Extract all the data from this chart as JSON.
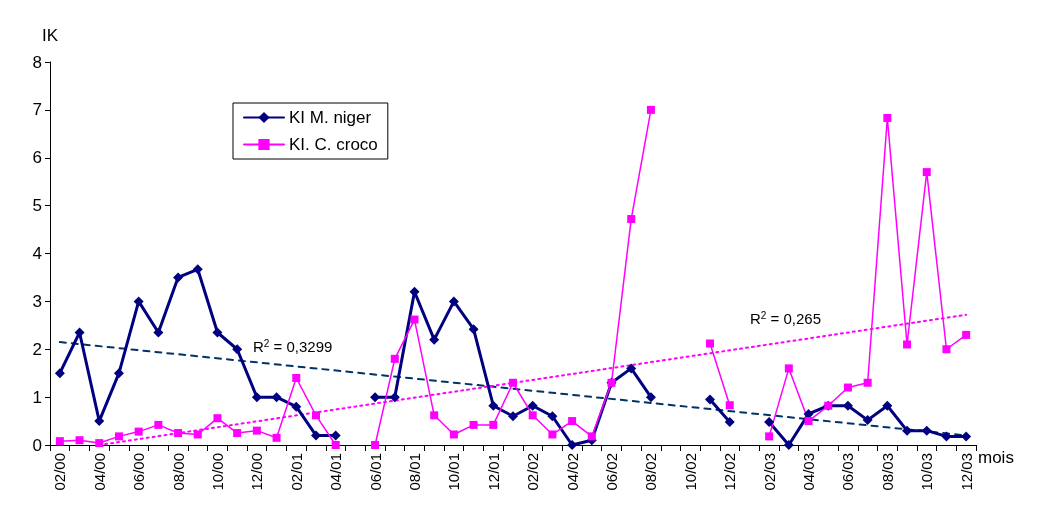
{
  "chart_data": {
    "type": "line",
    "xlabel": "mois",
    "ylabel": "IK",
    "categories": [
      "02/00",
      null,
      "04/00",
      null,
      "06/00",
      null,
      "08/00",
      null,
      "10/00",
      null,
      "12/00",
      null,
      "02/01",
      null,
      "04/01",
      null,
      "06/01",
      null,
      "08/01",
      null,
      "10/01",
      null,
      "12/01",
      null,
      "02/02",
      null,
      "04/02",
      null,
      "06/02",
      null,
      "08/02",
      null,
      "10/02",
      null,
      "12/02",
      null,
      "02/03",
      null,
      "04/03",
      null,
      "06/03",
      null,
      "08/03",
      null,
      "10/03",
      null,
      "12/03"
    ],
    "series": [
      {
        "name": "KI M. niger",
        "color": "#000080",
        "marker": "diamond",
        "line_style": "solid",
        "values": [
          1.5,
          2.35,
          0.5,
          1.5,
          3.0,
          2.35,
          3.5,
          3.67,
          2.35,
          2.0,
          1.0,
          1.0,
          0.8,
          0.2,
          0.2,
          null,
          1.0,
          1.0,
          3.2,
          2.2,
          3.0,
          2.42,
          0.82,
          0.6,
          0.82,
          0.6,
          0.0,
          0.1,
          1.3,
          1.6,
          1.0,
          null,
          null,
          0.95,
          0.48,
          null,
          0.48,
          0.0,
          0.65,
          0.82,
          0.82,
          0.52,
          0.82,
          0.3,
          0.3,
          0.18,
          0.18
        ]
      },
      {
        "name": "KI. C. croco",
        "color": "#ff00ff",
        "marker": "square",
        "line_style": "solid",
        "values": [
          0.08,
          0.1,
          0.04,
          0.18,
          0.28,
          0.42,
          0.25,
          0.22,
          0.56,
          0.25,
          0.3,
          0.15,
          1.4,
          0.62,
          0.0,
          null,
          0.0,
          1.8,
          2.62,
          0.62,
          0.22,
          0.42,
          0.42,
          1.3,
          0.62,
          0.22,
          0.5,
          0.18,
          1.3,
          4.72,
          7.0,
          null,
          null,
          2.12,
          0.83,
          null,
          0.18,
          1.6,
          0.5,
          0.82,
          1.2,
          1.3,
          6.83,
          2.1,
          5.7,
          2.0,
          2.3
        ]
      },
      {
        "type": "line",
        "color": "#003366",
        "marker": "none",
        "line_style": "dashed",
        "x": [
          "02/00",
          "12/03"
        ],
        "values": [
          2.15,
          0.2
        ]
      },
      {
        "type": "line",
        "color": "#ff00ff",
        "marker": "none",
        "line_style": "dotted",
        "x": [
          "04/00",
          "12/03"
        ],
        "values": [
          0.0,
          2.72
        ]
      }
    ],
    "annotations": [
      "R$^{2}$ = 0,3299",
      "R$^{2}$ = 0,265"
    ],
    "ylim": [
      0,
      8
    ],
    "yticks": [
      0,
      1,
      2,
      3,
      4,
      5,
      6,
      7,
      8
    ],
    "grid": false,
    "legend": "top left"
  }
}
